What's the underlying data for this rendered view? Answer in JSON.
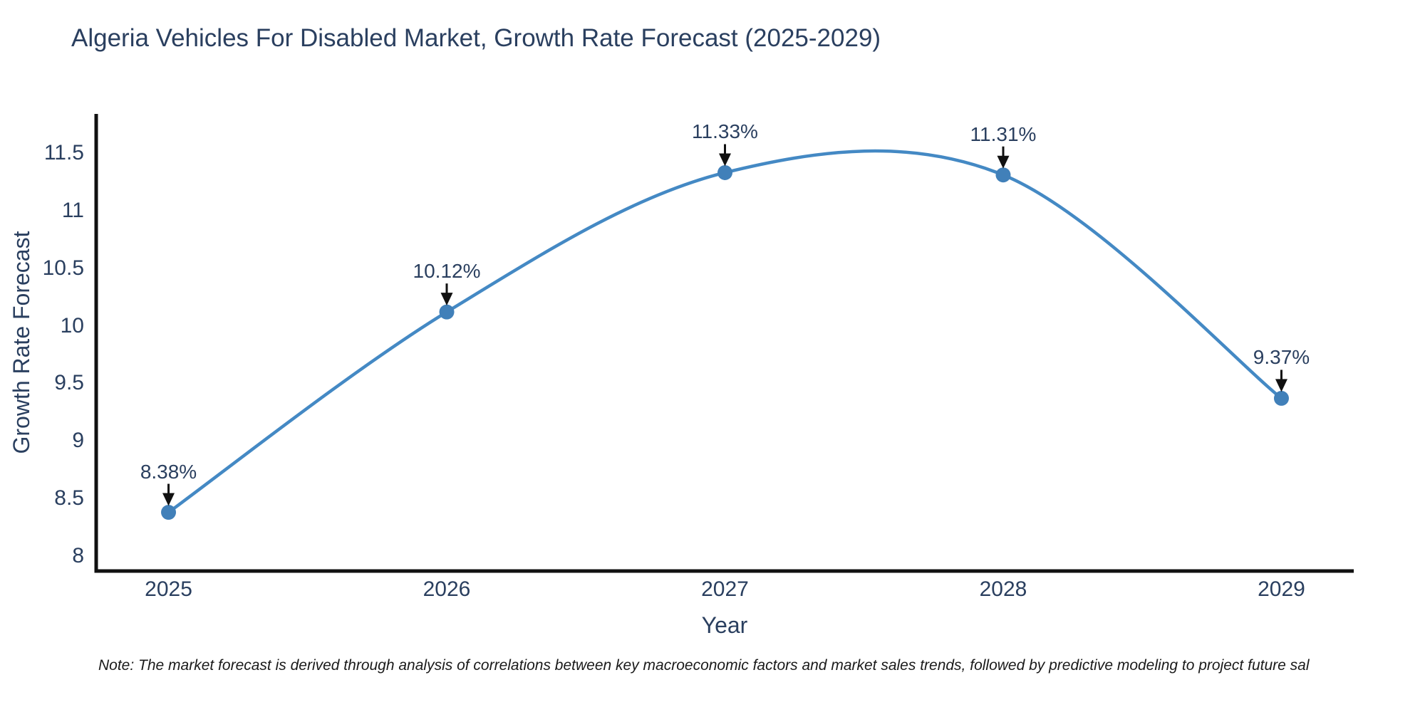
{
  "figure": {
    "note": "Note: The market forecast is derived through analysis of correlations between key macroeconomic factors and market sales trends, followed by predictive modeling to project future sal"
  },
  "chart_data": {
    "type": "line",
    "title": "Algeria Vehicles For Disabled Market, Growth Rate Forecast (2025-2029)",
    "xlabel": "Year",
    "ylabel": "Growth Rate Forecast",
    "x": [
      2025,
      2026,
      2027,
      2028,
      2029
    ],
    "series": [
      {
        "name": "Growth Rate Forecast",
        "values": [
          8.38,
          10.12,
          11.33,
          11.31,
          9.37
        ]
      }
    ],
    "point_labels": [
      "8.38%",
      "10.12%",
      "11.33%",
      "11.31%",
      "9.37%"
    ],
    "yticks": [
      8,
      8.5,
      9,
      9.5,
      10,
      10.5,
      11,
      11.5
    ],
    "xlim": [
      2024.74,
      2029.26
    ],
    "ylim": [
      7.87,
      11.84
    ],
    "line_shape": "spline",
    "grid": false,
    "legend": false,
    "colors": {
      "line": "#4489c4",
      "marker": "#4180b9",
      "axis": "#111111",
      "arrow": "#111111",
      "text": "#2a3f5f",
      "note": "#1a1a1a"
    }
  }
}
